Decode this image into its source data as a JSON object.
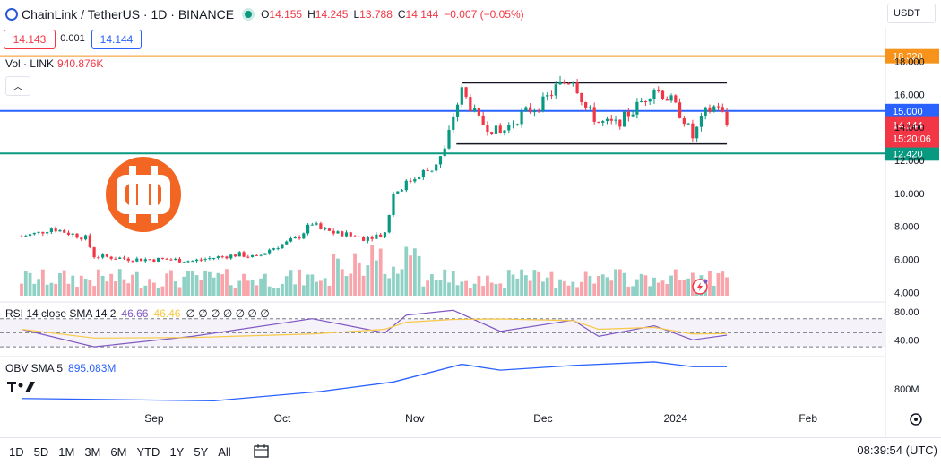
{
  "header": {
    "symbol": "ChainLink / TetherUS · 1D · BINANCE",
    "open_label": "O",
    "open": "14.155",
    "high_label": "H",
    "high": "14.245",
    "low_label": "L",
    "low": "13.788",
    "close_label": "C",
    "close": "14.144",
    "change": "−0.007 (−0.05%)"
  },
  "quote": {
    "bid": "14.143",
    "spread": "0.001",
    "ask": "14.144"
  },
  "currency_button": "USDT",
  "volume_legend": {
    "label": "Vol · LINK",
    "value": "940.876K"
  },
  "rsi_legend": {
    "label": "RSI 14 close SMA 14 2",
    "rsi": "46.66",
    "sma": "46.46",
    "rest": "∅ ∅ ∅ ∅ ∅ ∅ ∅"
  },
  "obv_legend": {
    "label": "OBV SMA 5",
    "value": "895.083M"
  },
  "timeframes": [
    "1D",
    "5D",
    "1M",
    "3M",
    "6M",
    "YTD",
    "1Y",
    "5Y",
    "All"
  ],
  "clock": "08:39:54 (UTC)",
  "colors": {
    "up": "#089981",
    "down": "#f23645",
    "orange": "#f7931a",
    "blue_line": "#2962ff",
    "teal_line": "#089981",
    "rsi": "#7e57c2",
    "rsi_sma": "#f7c948",
    "obv": "#2962ff",
    "logo": "#f26522"
  },
  "logo_icon": "orange-bitcoin-b-logo-icon",
  "chart_data": {
    "type": "candlestick",
    "price_axis": {
      "ticks": [
        4,
        6,
        8,
        10,
        12,
        14,
        16,
        18
      ],
      "range": [
        3.8,
        18.9
      ]
    },
    "time_axis": {
      "labels": [
        {
          "text": "Sep",
          "date": "2023-09-01"
        },
        {
          "text": "Oct",
          "date": "2023-10-01"
        },
        {
          "text": "Nov",
          "date": "2023-11-01"
        },
        {
          "text": "Dec",
          "date": "2023-12-01"
        },
        {
          "text": "2024",
          "date": "2024-01-01"
        },
        {
          "text": "Feb",
          "date": "2024-02-01"
        }
      ]
    },
    "horizontal_levels": [
      {
        "value": 18.32,
        "label": "18.320",
        "color": "#f7931a"
      },
      {
        "value": 15.0,
        "label": "15.000",
        "color": "#2962ff"
      },
      {
        "value": 12.42,
        "label": "12.420",
        "color": "#089981"
      }
    ],
    "channel": {
      "top": 16.7,
      "bottom": 13.0,
      "start": "2023-11-12",
      "end": "2024-01-13"
    },
    "last_price": {
      "value": 14.144,
      "label": "14.144",
      "countdown": "15:20:06"
    },
    "closes": [
      {
        "date": "2023-08-01",
        "close": 7.4
      },
      {
        "date": "2023-08-05",
        "close": 7.6
      },
      {
        "date": "2023-08-08",
        "close": 7.9
      },
      {
        "date": "2023-08-12",
        "close": 7.6
      },
      {
        "date": "2023-08-16",
        "close": 7.3
      },
      {
        "date": "2023-08-18",
        "close": 6.2
      },
      {
        "date": "2023-08-23",
        "close": 6.1
      },
      {
        "date": "2023-08-28",
        "close": 6.0
      },
      {
        "date": "2023-09-04",
        "close": 6.0
      },
      {
        "date": "2023-09-10",
        "close": 5.9
      },
      {
        "date": "2023-09-15",
        "close": 6.1
      },
      {
        "date": "2023-09-21",
        "close": 6.3
      },
      {
        "date": "2023-09-25",
        "close": 6.1
      },
      {
        "date": "2023-09-28",
        "close": 6.6
      },
      {
        "date": "2023-10-02",
        "close": 7.0
      },
      {
        "date": "2023-10-05",
        "close": 7.4
      },
      {
        "date": "2023-10-08",
        "close": 8.2
      },
      {
        "date": "2023-10-10",
        "close": 7.8
      },
      {
        "date": "2023-10-15",
        "close": 7.5
      },
      {
        "date": "2023-10-20",
        "close": 7.3
      },
      {
        "date": "2023-10-25",
        "close": 7.6
      },
      {
        "date": "2023-10-27",
        "close": 10.0
      },
      {
        "date": "2023-10-30",
        "close": 10.6
      },
      {
        "date": "2023-11-02",
        "close": 11.2
      },
      {
        "date": "2023-11-05",
        "close": 11.5
      },
      {
        "date": "2023-11-08",
        "close": 12.6
      },
      {
        "date": "2023-11-10",
        "close": 14.7
      },
      {
        "date": "2023-11-12",
        "close": 16.2
      },
      {
        "date": "2023-11-16",
        "close": 14.4
      },
      {
        "date": "2023-11-21",
        "close": 13.6
      },
      {
        "date": "2023-11-26",
        "close": 14.8
      },
      {
        "date": "2023-12-01",
        "close": 15.5
      },
      {
        "date": "2023-12-04",
        "close": 16.4
      },
      {
        "date": "2023-12-08",
        "close": 17.0
      },
      {
        "date": "2023-12-11",
        "close": 15.2
      },
      {
        "date": "2023-12-14",
        "close": 14.3
      },
      {
        "date": "2023-12-18",
        "close": 14.2
      },
      {
        "date": "2023-12-22",
        "close": 15.0
      },
      {
        "date": "2023-12-27",
        "close": 16.4
      },
      {
        "date": "2023-12-31",
        "close": 15.6
      },
      {
        "date": "2024-01-03",
        "close": 14.5
      },
      {
        "date": "2024-01-05",
        "close": 13.4
      },
      {
        "date": "2024-01-08",
        "close": 14.9
      },
      {
        "date": "2024-01-11",
        "close": 15.4
      },
      {
        "date": "2024-01-13",
        "close": 14.144
      }
    ],
    "rsi_axis": {
      "ticks": [
        40,
        80
      ]
    },
    "rsi_values": [
      {
        "date": "2023-08-01",
        "rsi": 55
      },
      {
        "date": "2023-08-18",
        "rsi": 30
      },
      {
        "date": "2023-09-10",
        "rsi": 45
      },
      {
        "date": "2023-10-08",
        "rsi": 70
      },
      {
        "date": "2023-10-25",
        "rsi": 50
      },
      {
        "date": "2023-10-30",
        "rsi": 75
      },
      {
        "date": "2023-11-10",
        "rsi": 82
      },
      {
        "date": "2023-11-21",
        "rsi": 52
      },
      {
        "date": "2023-12-08",
        "rsi": 68
      },
      {
        "date": "2023-12-14",
        "rsi": 45
      },
      {
        "date": "2023-12-27",
        "rsi": 60
      },
      {
        "date": "2024-01-05",
        "rsi": 40
      },
      {
        "date": "2024-01-13",
        "rsi": 46.66
      }
    ],
    "obv_axis": {
      "ticks": [
        {
          "text": "800M",
          "value": 800
        }
      ]
    },
    "obv_values": [
      {
        "date": "2023-08-01",
        "obv": 760
      },
      {
        "date": "2023-09-15",
        "obv": 750
      },
      {
        "date": "2023-10-10",
        "obv": 790
      },
      {
        "date": "2023-10-27",
        "obv": 830
      },
      {
        "date": "2023-11-12",
        "obv": 905
      },
      {
        "date": "2023-11-21",
        "obv": 880
      },
      {
        "date": "2023-12-08",
        "obv": 900
      },
      {
        "date": "2023-12-27",
        "obv": 915
      },
      {
        "date": "2024-01-05",
        "obv": 895
      },
      {
        "date": "2024-01-13",
        "obv": 895.083
      }
    ]
  }
}
